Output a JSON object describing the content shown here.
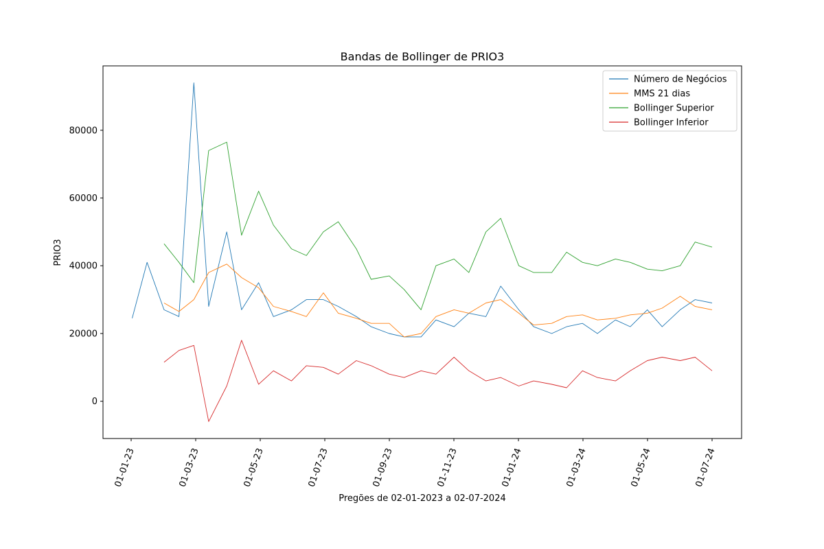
{
  "chart_data": {
    "type": "line",
    "title": "Bandas de Bollinger de PRIO3",
    "xlabel": "Pregões de 02-01-2023 a 02-07-2024",
    "ylabel": "PRIO3",
    "ylim": [
      -11000,
      99000
    ],
    "x_tick_labels": [
      "01-01-23",
      "01-03-23",
      "01-05-23",
      "01-07-23",
      "01-09-23",
      "01-11-23",
      "01-01-24",
      "01-03-24",
      "01-05-24",
      "01-07-24"
    ],
    "y_ticks": [
      0,
      20000,
      40000,
      60000,
      80000
    ],
    "y_tick_labels": [
      "0",
      "20000",
      "40000",
      "60000",
      "80000"
    ],
    "legend_position": "top-right",
    "grid": false,
    "series": [
      {
        "name": "Número de Negócios",
        "color": "#1f77b4",
        "x": [
          "2023-01-02",
          "2023-01-16",
          "2023-02-01",
          "2023-02-15",
          "2023-03-01",
          "2023-03-15",
          "2023-04-01",
          "2023-04-15",
          "2023-05-01",
          "2023-05-15",
          "2023-06-01",
          "2023-06-15",
          "2023-07-01",
          "2023-07-15",
          "2023-08-01",
          "2023-08-15",
          "2023-09-01",
          "2023-09-15",
          "2023-10-01",
          "2023-10-15",
          "2023-11-01",
          "2023-11-15",
          "2023-12-01",
          "2023-12-15",
          "2024-01-01",
          "2024-01-15",
          "2024-02-01",
          "2024-02-15",
          "2024-03-01",
          "2024-03-15",
          "2024-04-01",
          "2024-04-15",
          "2024-05-01",
          "2024-05-15",
          "2024-06-01",
          "2024-06-15",
          "2024-07-01"
        ],
        "y": [
          24500,
          41000,
          27000,
          25000,
          94000,
          28000,
          50000,
          27000,
          35000,
          25000,
          27000,
          30000,
          30000,
          28000,
          25000,
          22000,
          20000,
          19000,
          19000,
          24000,
          22000,
          26000,
          25000,
          34000,
          27000,
          22000,
          20000,
          22000,
          23000,
          20000,
          24000,
          22000,
          27000,
          22000,
          27000,
          30000,
          29000
        ]
      },
      {
        "name": "MMS 21 dias",
        "color": "#ff7f0e",
        "x": [
          "2023-02-01",
          "2023-02-15",
          "2023-03-01",
          "2023-03-15",
          "2023-04-01",
          "2023-04-15",
          "2023-05-01",
          "2023-05-15",
          "2023-06-01",
          "2023-06-15",
          "2023-07-01",
          "2023-07-15",
          "2023-08-01",
          "2023-08-15",
          "2023-09-01",
          "2023-09-15",
          "2023-10-01",
          "2023-10-15",
          "2023-11-01",
          "2023-11-15",
          "2023-12-01",
          "2023-12-15",
          "2024-01-01",
          "2024-01-15",
          "2024-02-01",
          "2024-02-15",
          "2024-03-01",
          "2024-03-15",
          "2024-04-01",
          "2024-04-15",
          "2024-05-01",
          "2024-05-15",
          "2024-06-01",
          "2024-06-15",
          "2024-07-01"
        ],
        "y": [
          29000,
          26500,
          30000,
          38000,
          40500,
          36500,
          33500,
          28000,
          26500,
          25000,
          32000,
          26000,
          24500,
          23000,
          23000,
          19000,
          20000,
          25000,
          27000,
          26000,
          29000,
          30000,
          26000,
          22500,
          23000,
          25000,
          25500,
          24000,
          24500,
          25500,
          26000,
          27500,
          31000,
          28000,
          27000
        ]
      },
      {
        "name": "Bollinger Superior",
        "color": "#2ca02c",
        "x": [
          "2023-02-01",
          "2023-02-15",
          "2023-03-01",
          "2023-03-15",
          "2023-04-01",
          "2023-04-15",
          "2023-05-01",
          "2023-05-15",
          "2023-06-01",
          "2023-06-15",
          "2023-07-01",
          "2023-07-15",
          "2023-08-01",
          "2023-08-15",
          "2023-09-01",
          "2023-09-15",
          "2023-10-01",
          "2023-10-15",
          "2023-11-01",
          "2023-11-15",
          "2023-12-01",
          "2023-12-15",
          "2024-01-01",
          "2024-01-15",
          "2024-02-01",
          "2024-02-15",
          "2024-03-01",
          "2024-03-15",
          "2024-04-01",
          "2024-04-15",
          "2024-05-01",
          "2024-05-15",
          "2024-06-01",
          "2024-06-15",
          "2024-07-01"
        ],
        "y": [
          46500,
          41000,
          35000,
          74000,
          76500,
          49000,
          62000,
          52000,
          45000,
          43000,
          50000,
          53000,
          45000,
          36000,
          37000,
          33000,
          27000,
          40000,
          42000,
          38000,
          50000,
          54000,
          40000,
          38000,
          38000,
          44000,
          41000,
          40000,
          42000,
          41000,
          39000,
          38500,
          40000,
          47000,
          45500
        ]
      },
      {
        "name": "Bollinger Inferior",
        "color": "#d62728",
        "x": [
          "2023-02-01",
          "2023-02-15",
          "2023-03-01",
          "2023-03-15",
          "2023-04-01",
          "2023-04-15",
          "2023-05-01",
          "2023-05-15",
          "2023-06-01",
          "2023-06-15",
          "2023-07-01",
          "2023-07-15",
          "2023-08-01",
          "2023-08-15",
          "2023-09-01",
          "2023-09-15",
          "2023-10-01",
          "2023-10-15",
          "2023-11-01",
          "2023-11-15",
          "2023-12-01",
          "2023-12-15",
          "2024-01-01",
          "2024-01-15",
          "2024-02-01",
          "2024-02-15",
          "2024-03-01",
          "2024-03-15",
          "2024-04-01",
          "2024-04-15",
          "2024-05-01",
          "2024-05-15",
          "2024-06-01",
          "2024-06-15",
          "2024-07-01"
        ],
        "y": [
          11500,
          15000,
          16500,
          -6000,
          4500,
          18000,
          5000,
          9000,
          6000,
          10500,
          10000,
          8000,
          12000,
          10500,
          8000,
          7000,
          9000,
          8000,
          13000,
          9000,
          6000,
          7000,
          4500,
          6000,
          5000,
          4000,
          9000,
          7000,
          6000,
          9000,
          12000,
          13000,
          12000,
          13000,
          9000
        ]
      }
    ]
  }
}
